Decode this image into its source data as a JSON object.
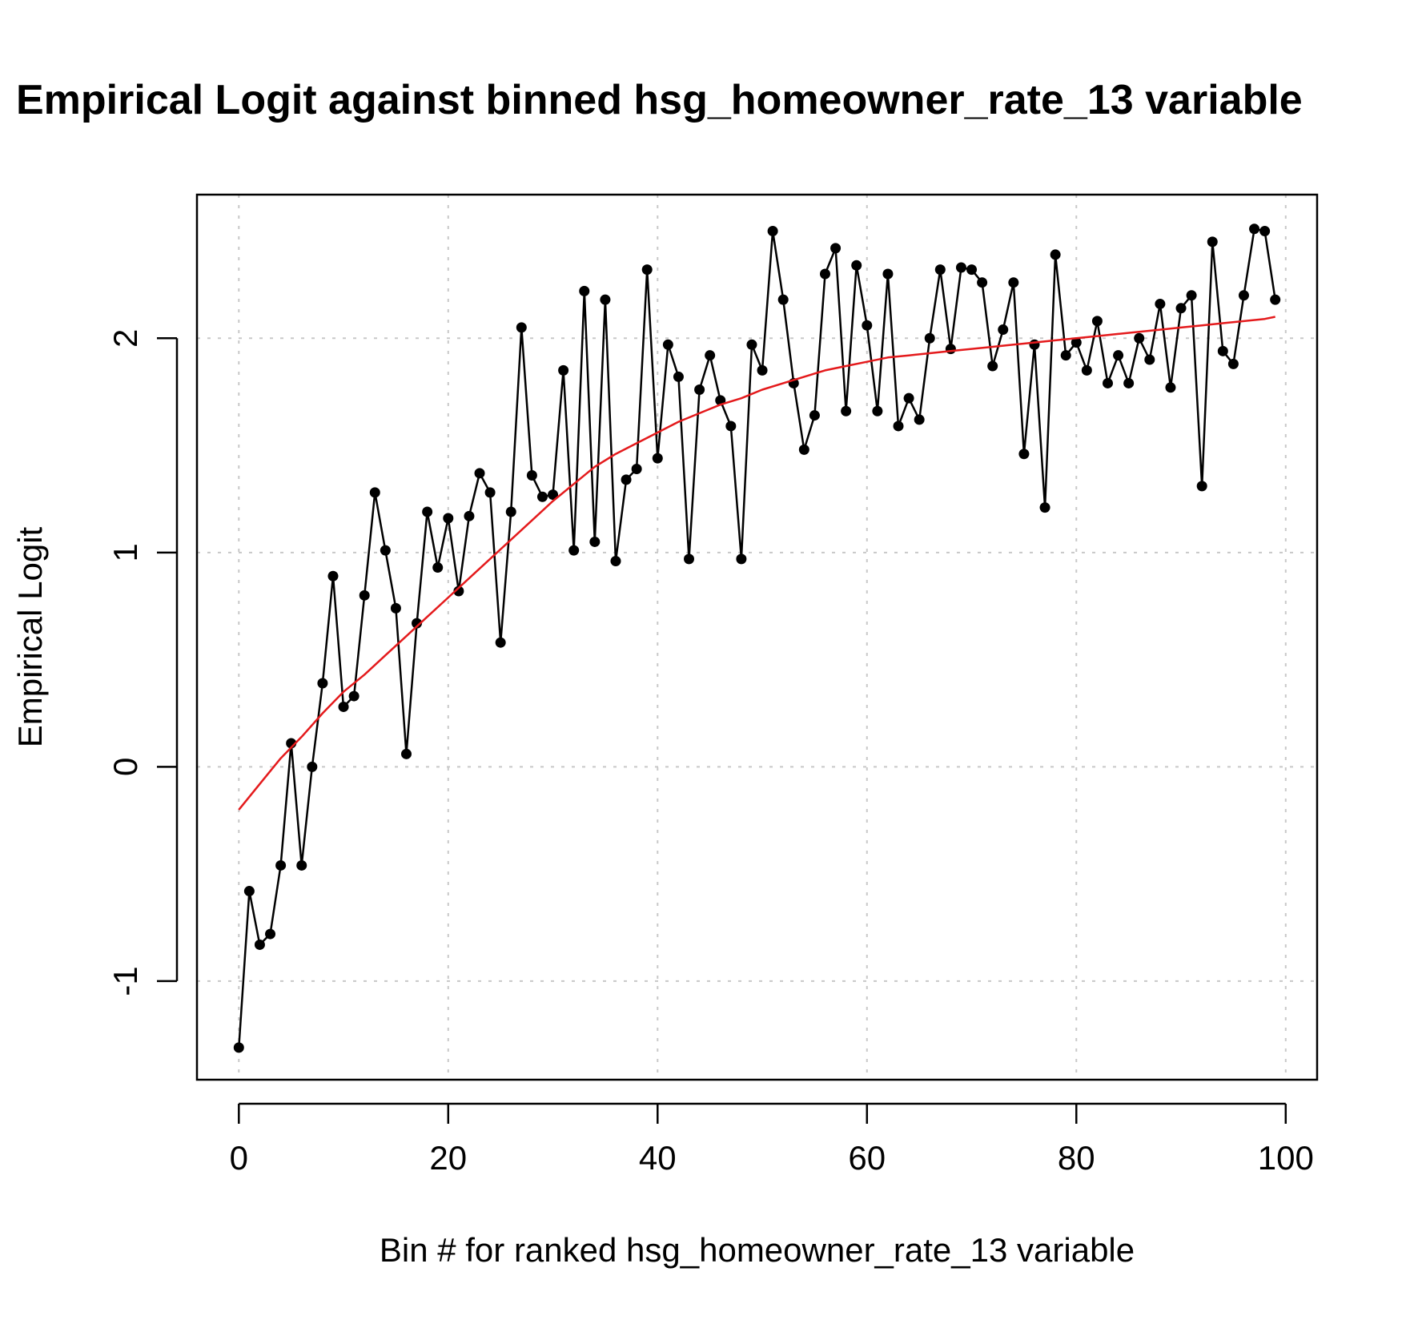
{
  "chart_data": {
    "type": "line",
    "title": "Empirical Logit against binned hsg_homeowner_rate_13 variable",
    "xlabel": "Bin # for ranked hsg_homeowner_rate_13 variable",
    "ylabel": "Empirical Logit",
    "xlim": [
      -4,
      103
    ],
    "ylim": [
      -1.46,
      2.67
    ],
    "xticks": [
      0,
      20,
      40,
      60,
      80,
      100
    ],
    "yticks": [
      -1,
      0,
      1,
      2
    ],
    "xtick_labels": [
      "0",
      "20",
      "40",
      "60",
      "80",
      "100"
    ],
    "ytick_labels": [
      "-1",
      "0",
      "1",
      "2"
    ],
    "grid": true,
    "series": [
      {
        "style": "points-and-lines",
        "color": "#000000",
        "x": [
          0,
          1,
          2,
          3,
          4,
          5,
          6,
          7,
          8,
          9,
          10,
          11,
          12,
          13,
          14,
          15,
          16,
          17,
          18,
          19,
          20,
          21,
          22,
          23,
          24,
          25,
          26,
          27,
          28,
          29,
          30,
          31,
          32,
          33,
          34,
          35,
          36,
          37,
          38,
          39,
          40,
          41,
          42,
          43,
          44,
          45,
          46,
          47,
          48,
          49,
          50,
          51,
          52,
          53,
          54,
          55,
          56,
          57,
          58,
          59,
          60,
          61,
          62,
          63,
          64,
          65,
          66,
          67,
          68,
          69,
          70,
          71,
          72,
          73,
          74,
          75,
          76,
          77,
          78,
          79,
          80,
          81,
          82,
          83,
          84,
          85,
          86,
          87,
          88,
          89,
          90,
          91,
          92,
          93,
          94,
          95,
          96,
          97,
          98,
          99
        ],
        "y": [
          -1.31,
          -0.58,
          -0.83,
          -0.78,
          -0.46,
          0.11,
          -0.46,
          0.0,
          0.39,
          0.89,
          0.28,
          0.33,
          0.8,
          1.28,
          1.01,
          0.74,
          0.06,
          0.67,
          1.19,
          0.93,
          1.16,
          0.82,
          1.17,
          1.37,
          1.28,
          0.58,
          1.19,
          2.05,
          1.36,
          1.26,
          1.27,
          1.85,
          1.01,
          2.22,
          1.05,
          2.18,
          0.96,
          1.34,
          1.39,
          2.32,
          1.44,
          1.97,
          1.82,
          0.97,
          1.76,
          1.92,
          1.71,
          1.59,
          0.97,
          1.97,
          1.85,
          2.5,
          2.18,
          1.79,
          1.48,
          1.64,
          2.3,
          2.42,
          1.66,
          2.34,
          2.06,
          1.66,
          2.3,
          1.59,
          1.72,
          1.62,
          2.0,
          2.32,
          1.95,
          2.33,
          2.32,
          2.26,
          1.87,
          2.04,
          2.26,
          1.46,
          1.97,
          1.21,
          2.39,
          1.92,
          1.98,
          1.85,
          2.08,
          1.79,
          1.92,
          1.79,
          2.0,
          1.9,
          2.16,
          1.77,
          2.14,
          2.2,
          1.31,
          2.45,
          1.94,
          1.88,
          2.2,
          2.51,
          2.5,
          2.18
        ]
      },
      {
        "style": "smooth-line",
        "color": "#e41a1c",
        "x": [
          0,
          2,
          4,
          6,
          8,
          10,
          12,
          14,
          16,
          18,
          20,
          22,
          24,
          26,
          28,
          30,
          32,
          34,
          36,
          38,
          40,
          42,
          44,
          46,
          48,
          50,
          52,
          54,
          56,
          58,
          60,
          62,
          64,
          66,
          68,
          70,
          72,
          74,
          76,
          78,
          80,
          82,
          84,
          86,
          88,
          90,
          92,
          94,
          96,
          98,
          99
        ],
        "y": [
          -0.2,
          -0.08,
          0.04,
          0.14,
          0.25,
          0.35,
          0.43,
          0.52,
          0.61,
          0.7,
          0.79,
          0.88,
          0.97,
          1.06,
          1.15,
          1.24,
          1.32,
          1.4,
          1.46,
          1.51,
          1.56,
          1.61,
          1.65,
          1.69,
          1.72,
          1.76,
          1.79,
          1.82,
          1.85,
          1.87,
          1.89,
          1.91,
          1.92,
          1.93,
          1.94,
          1.95,
          1.96,
          1.97,
          1.98,
          1.99,
          2.0,
          2.01,
          2.02,
          2.03,
          2.04,
          2.05,
          2.06,
          2.07,
          2.08,
          2.09,
          2.1
        ]
      }
    ]
  }
}
